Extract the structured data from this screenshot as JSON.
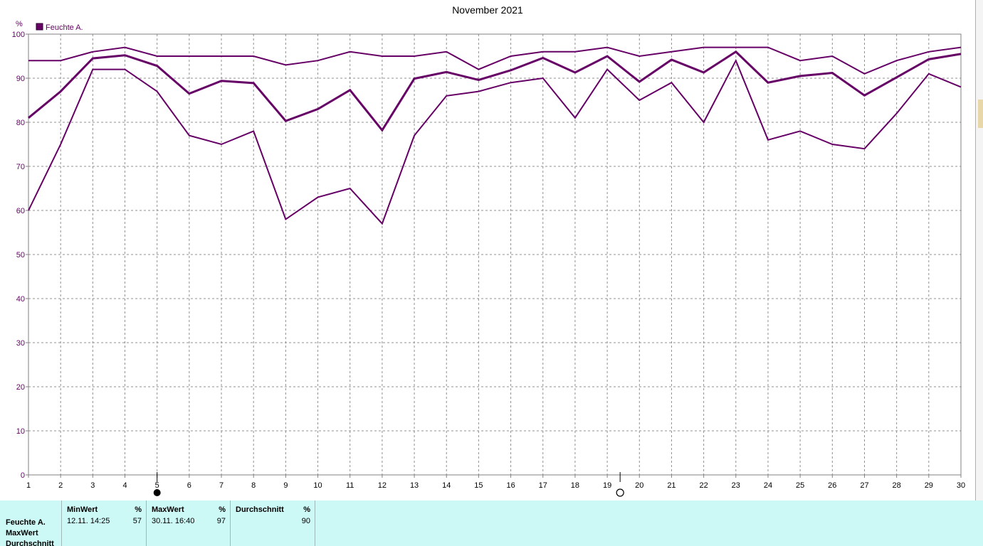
{
  "chart_data": {
    "type": "line",
    "title": "November 2021",
    "unit_label": "%",
    "legend": {
      "label": "Feuchte A.",
      "color": "#660066",
      "position": "top-left"
    },
    "x": [
      1,
      2,
      3,
      4,
      5,
      6,
      7,
      8,
      9,
      10,
      11,
      12,
      13,
      14,
      15,
      16,
      17,
      18,
      19,
      20,
      21,
      22,
      23,
      24,
      25,
      26,
      27,
      28,
      29,
      30
    ],
    "xlim": [
      1,
      30
    ],
    "ylim": [
      0,
      100
    ],
    "yticks": [
      0,
      10,
      20,
      30,
      40,
      50,
      60,
      70,
      80,
      90,
      100
    ],
    "grid": true,
    "line_color": "#660066",
    "series": [
      {
        "role": "max",
        "values": [
          94,
          94,
          96,
          97,
          95,
          95,
          95,
          95,
          93,
          94,
          96,
          95,
          95,
          96,
          92,
          95,
          96,
          96,
          97,
          95,
          96,
          97,
          97,
          97,
          94,
          95,
          91,
          94,
          96,
          97
        ]
      },
      {
        "role": "avg",
        "values": [
          81,
          87,
          94.5,
          95.2,
          92.8,
          86.5,
          89.4,
          88.9,
          80.3,
          83,
          87.3,
          78.2,
          89.9,
          91.4,
          89.6,
          91.8,
          94.6,
          91.3,
          95,
          89.2,
          94.2,
          91.3,
          96,
          89,
          90.5,
          91.2,
          86.1,
          90.2,
          94.3,
          95.5
        ]
      },
      {
        "role": "min",
        "values": [
          60,
          75,
          92,
          92,
          87,
          77,
          75,
          78,
          58,
          63,
          65,
          57,
          77,
          86,
          87,
          89,
          90,
          81,
          92,
          85,
          89,
          80,
          94,
          76,
          78,
          75,
          74,
          82,
          91,
          88
        ]
      }
    ],
    "markers": [
      {
        "type": "new-moon",
        "x": 5
      },
      {
        "type": "full-moon",
        "x": 19.4
      }
    ]
  },
  "stats": {
    "row_labels": [
      "Feuchte A.",
      "MaxWert",
      "Durchschnitt"
    ],
    "min": {
      "header": "MinWert",
      "unit": "%",
      "time": "12.11.  14:25",
      "value": "57"
    },
    "max": {
      "header": "MaxWert",
      "unit": "%",
      "time": "30.11.  16:40",
      "value": "97"
    },
    "avg": {
      "header": "Durchschnitt",
      "unit": "%",
      "value": "90"
    }
  }
}
